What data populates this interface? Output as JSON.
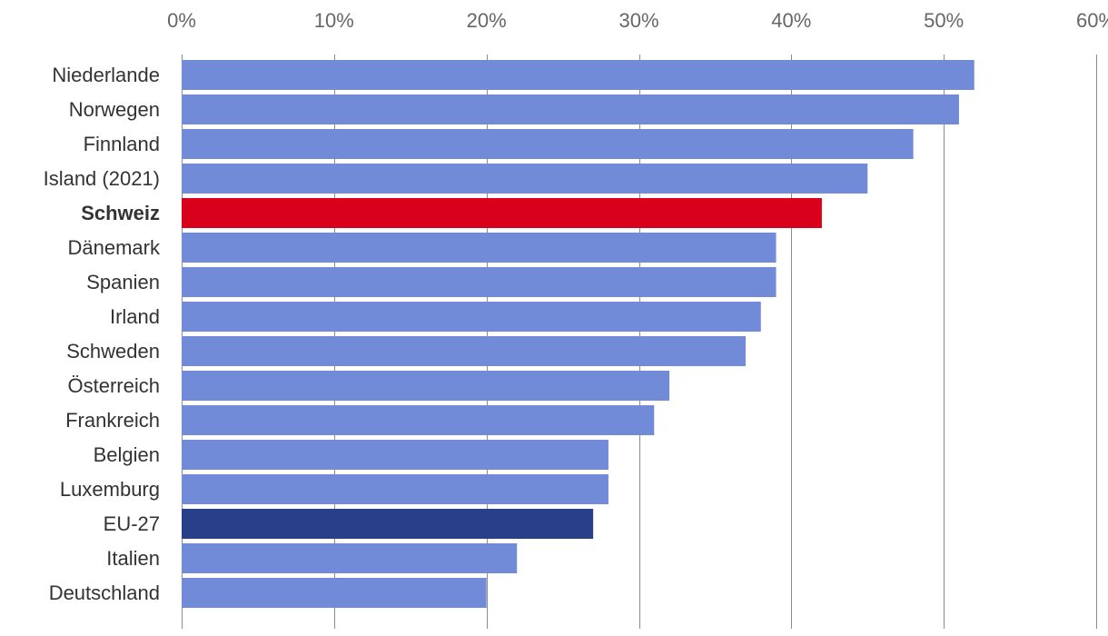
{
  "chart_data": {
    "type": "bar",
    "orientation": "horizontal",
    "title": "",
    "xlabel": "",
    "ylabel": "",
    "xlim": [
      0,
      60
    ],
    "x_ticks": [
      0,
      10,
      20,
      30,
      40,
      50,
      60
    ],
    "x_tick_labels": [
      "0%",
      "10%",
      "20%",
      "30%",
      "40%",
      "50%",
      "60%"
    ],
    "axis_position": "top",
    "grid": true,
    "unit": "%",
    "categories": [
      "Niederlande",
      "Norwegen",
      "Finnland",
      "Island (2021)",
      "Schweiz",
      "Dänemark",
      "Spanien",
      "Irland",
      "Schweden",
      "Österreich",
      "Frankreich",
      "Belgien",
      "Luxemburg",
      "EU-27",
      "Italien",
      "Deutschland"
    ],
    "values": [
      52,
      51,
      48,
      45,
      42,
      39,
      39,
      38,
      37,
      32,
      31,
      28,
      28,
      27,
      22,
      20
    ],
    "highlight": {
      "Schweiz": "#d9001b",
      "EU-27": "#283f8a"
    },
    "bold_categories": [
      "Schweiz"
    ],
    "default_color": "#718bd8"
  }
}
